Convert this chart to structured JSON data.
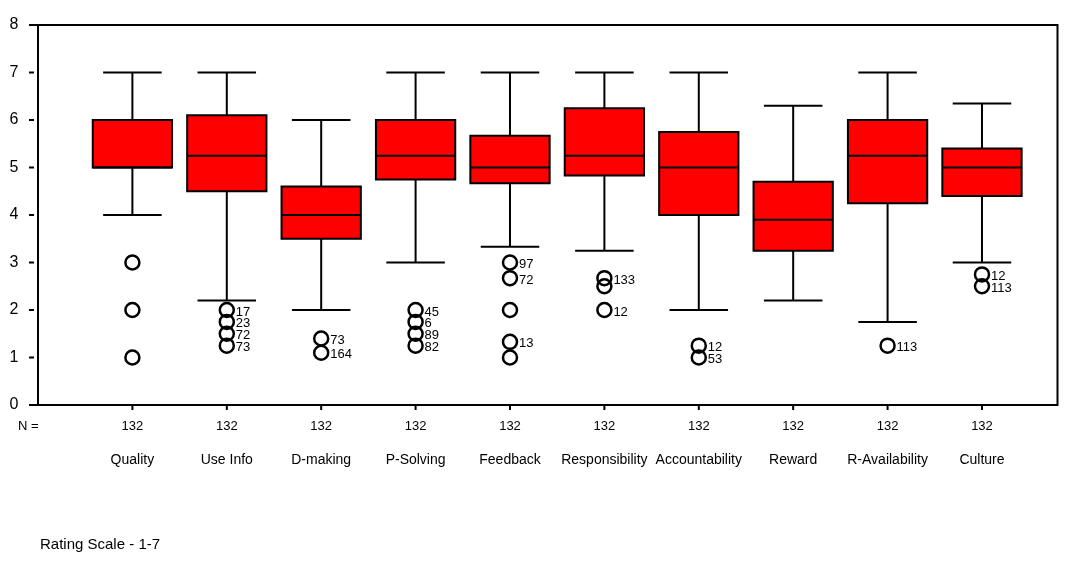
{
  "chart_data": {
    "type": "box",
    "color": "#ff0000",
    "categories": [
      "Quality",
      "Use Info",
      "D-making",
      "P-Solving",
      "Feedback",
      "Responsibility",
      "Accountability",
      "Reward",
      "R-Availability",
      "Culture"
    ],
    "boxes": [
      {
        "low": 4,
        "q1": 5,
        "median": 5,
        "q3": 6,
        "high": 7
      },
      {
        "low": 2.2,
        "q1": 4.5,
        "median": 5.25,
        "q3": 6.1,
        "high": 7
      },
      {
        "low": 2,
        "q1": 3.5,
        "median": 4,
        "q3": 4.6,
        "high": 6
      },
      {
        "low": 3,
        "q1": 4.75,
        "median": 5.25,
        "q3": 6,
        "high": 7
      },
      {
        "low": 3.33,
        "q1": 4.67,
        "median": 5,
        "q3": 5.67,
        "high": 7
      },
      {
        "low": 3.25,
        "q1": 4.83,
        "median": 5.25,
        "q3": 6.25,
        "high": 7
      },
      {
        "low": 2,
        "q1": 4,
        "median": 5,
        "q3": 5.75,
        "high": 7
      },
      {
        "low": 2.2,
        "q1": 3.25,
        "median": 3.9,
        "q3": 4.7,
        "high": 6.3
      },
      {
        "low": 1.75,
        "q1": 4.25,
        "median": 5.25,
        "q3": 6,
        "high": 7
      },
      {
        "low": 3,
        "q1": 4.4,
        "median": 5,
        "q3": 5.4,
        "high": 6.35
      }
    ],
    "series": [
      {
        "type": "scatter",
        "color": "#000000",
        "marker": "circle",
        "x": [
          "Quality",
          "Quality",
          "Quality",
          "Use Info",
          "Use Info",
          "Use Info",
          "Use Info",
          "D-making",
          "D-making",
          "P-Solving",
          "P-Solving",
          "P-Solving",
          "P-Solving",
          "Feedback",
          "Feedback",
          "Feedback",
          "Feedback",
          "Feedback",
          "Responsibility",
          "Responsibility",
          "Responsibility",
          "Accountability",
          "Accountability",
          "R-Availability",
          "Culture",
          "Culture"
        ],
        "values": [
          3,
          2,
          1,
          2,
          1.75,
          1.5,
          1.25,
          1.4,
          1.1,
          2,
          1.75,
          1.5,
          1.25,
          3,
          2.67,
          2,
          1.33,
          1,
          2.67,
          2.5,
          2,
          1.25,
          1,
          1.25,
          2.75,
          2.5
        ]
      }
    ],
    "ylim": [
      0,
      8
    ],
    "yticks": [
      0,
      1,
      2,
      3,
      4,
      5,
      6,
      7,
      8
    ],
    "annotations": [
      "N =",
      "Rating Scale - 1-7",
      {
        "text": "132",
        "x": "Quality"
      },
      {
        "text": "132",
        "x": "Use Info"
      },
      {
        "text": "132",
        "x": "D-making"
      },
      {
        "text": "132",
        "x": "P-Solving"
      },
      {
        "text": "132",
        "x": "Feedback"
      },
      {
        "text": "132",
        "x": "Responsibility"
      },
      {
        "text": "132",
        "x": "Accountability"
      },
      {
        "text": "132",
        "x": "Reward"
      },
      {
        "text": "132",
        "x": "R-Availability"
      },
      {
        "text": "132",
        "x": "Culture"
      },
      {
        "text": "17",
        "x": "Use Info",
        "y": 2
      },
      {
        "text": "23",
        "x": "Use Info",
        "y": 1.75
      },
      {
        "text": "72",
        "x": "Use Info",
        "y": 1.5
      },
      {
        "text": "73",
        "x": "Use Info",
        "y": 1.25
      },
      {
        "text": "73",
        "x": "D-making",
        "y": 1.4
      },
      {
        "text": "164",
        "x": "D-making",
        "y": 1.1
      },
      {
        "text": "45",
        "x": "P-Solving",
        "y": 2
      },
      {
        "text": "6",
        "x": "P-Solving",
        "y": 1.75
      },
      {
        "text": "89",
        "x": "P-Solving",
        "y": 1.5
      },
      {
        "text": "82",
        "x": "P-Solving",
        "y": 1.25
      },
      {
        "text": "97",
        "x": "Feedback",
        "y": 3
      },
      {
        "text": "72",
        "x": "Feedback",
        "y": 2.67
      },
      {
        "text": "13",
        "x": "Feedback",
        "y": 1.33
      },
      {
        "text": "133",
        "x": "Responsibility",
        "y": 2.67
      },
      {
        "text": "12",
        "x": "Responsibility",
        "y": 2
      },
      {
        "text": "12",
        "x": "Accountability",
        "y": 1.25
      },
      {
        "text": "53",
        "x": "Accountability",
        "y": 1
      },
      {
        "text": "113",
        "x": "R-Availability",
        "y": 1.25
      },
      {
        "text": "12",
        "x": "Culture",
        "y": 2.75
      },
      {
        "text": "113",
        "x": "Culture",
        "y": 2.5
      }
    ]
  }
}
